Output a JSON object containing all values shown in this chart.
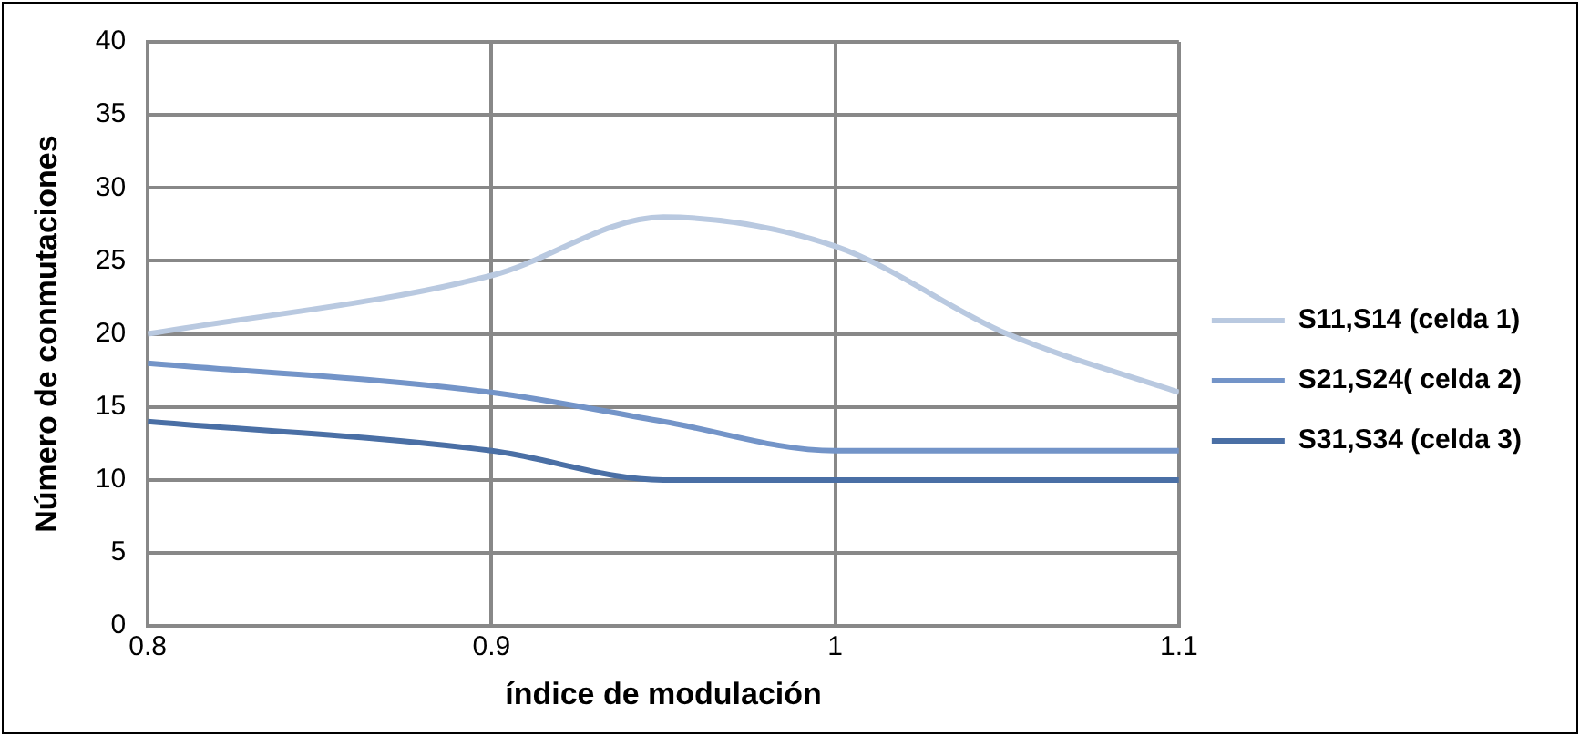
{
  "chart_data": {
    "type": "line",
    "xlabel": "índice de modulación",
    "ylabel": "Número de conmutaciones",
    "x": [
      0.8,
      0.9,
      0.95,
      1,
      1.05,
      1.1
    ],
    "series": [
      {
        "name": "S11,S14 (celda 1)",
        "color": "#b9c9e0",
        "values": [
          20,
          24,
          28,
          26,
          20,
          16
        ]
      },
      {
        "name": "S21,S24( celda 2)",
        "color": "#7394c8",
        "values": [
          18,
          16,
          14,
          12,
          12,
          12
        ]
      },
      {
        "name": "S31,S34 (celda 3)",
        "color": "#4a6fa5",
        "values": [
          14,
          12,
          10,
          10,
          10,
          10
        ]
      }
    ],
    "xlim": [
      0.8,
      1.1
    ],
    "xticks": [
      0.8,
      0.9,
      1,
      1.1
    ],
    "ylim": [
      0,
      40
    ],
    "yticks": [
      0,
      5,
      10,
      15,
      20,
      25,
      30,
      35,
      40
    ],
    "grid": true,
    "legend": "right",
    "marker": "none",
    "line_style": "solid"
  }
}
